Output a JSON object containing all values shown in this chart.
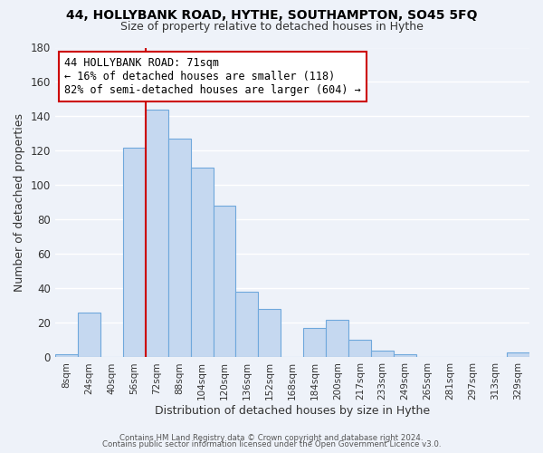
{
  "title": "44, HOLLYBANK ROAD, HYTHE, SOUTHAMPTON, SO45 5FQ",
  "subtitle": "Size of property relative to detached houses in Hythe",
  "xlabel": "Distribution of detached houses by size in Hythe",
  "ylabel": "Number of detached properties",
  "bin_labels": [
    "8sqm",
    "24sqm",
    "40sqm",
    "56sqm",
    "72sqm",
    "88sqm",
    "104sqm",
    "120sqm",
    "136sqm",
    "152sqm",
    "168sqm",
    "184sqm",
    "200sqm",
    "217sqm",
    "233sqm",
    "249sqm",
    "265sqm",
    "281sqm",
    "297sqm",
    "313sqm",
    "329sqm"
  ],
  "bar_heights": [
    2,
    26,
    0,
    122,
    144,
    127,
    110,
    88,
    38,
    28,
    0,
    17,
    22,
    10,
    4,
    2,
    0,
    0,
    0,
    0,
    3
  ],
  "bar_color": "#c5d8f0",
  "bar_edge_color": "#6fa8dc",
  "vline_color": "#cc0000",
  "ylim": [
    0,
    180
  ],
  "yticks": [
    0,
    20,
    40,
    60,
    80,
    100,
    120,
    140,
    160,
    180
  ],
  "annotation_text": "44 HOLLYBANK ROAD: 71sqm\n← 16% of detached houses are smaller (118)\n82% of semi-detached houses are larger (604) →",
  "annotation_box_color": "#ffffff",
  "annotation_box_edge": "#cc0000",
  "footer_line1": "Contains HM Land Registry data © Crown copyright and database right 2024.",
  "footer_line2": "Contains public sector information licensed under the Open Government Licence v3.0.",
  "background_color": "#eef2f9",
  "grid_color": "#ffffff",
  "title_fontsize": 10,
  "subtitle_fontsize": 9
}
